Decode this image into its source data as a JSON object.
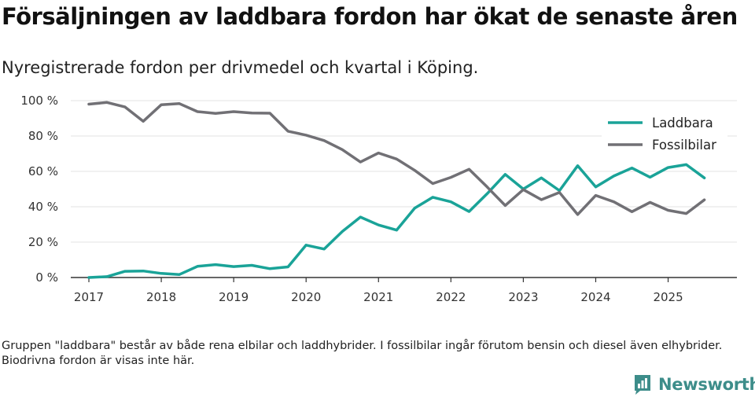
{
  "title": "Försäljningen av laddbara fordon har ökat de senaste åren",
  "subtitle": "Nyregistrerade fordon per drivmedel och kvartal i Köping.",
  "footnote": "Gruppen \"laddbara\" består av både rena elbilar och laddhybrider. I fossilbilar ingår förutom bensin och diesel även elhybrider. Biodrivna fordon är visas inte här.",
  "brand": {
    "name": "Newsworthy",
    "icon": "newsworthy-logo-icon"
  },
  "colors": {
    "laddbara": "#1aa398",
    "fossilbilar": "#717075",
    "grid": "#e3e3e3",
    "axis": "#333333"
  },
  "chart_data": {
    "type": "line",
    "title": "Försäljningen av laddbara fordon har ökat de senaste åren",
    "xlabel": "",
    "ylabel": "",
    "ylim": [
      0,
      100
    ],
    "xlim": [
      2016.75,
      2025.95
    ],
    "y_ticks": [
      0,
      20,
      40,
      60,
      80,
      100
    ],
    "y_tick_labels": [
      "0 %",
      "20 %",
      "40 %",
      "60 %",
      "80 %",
      "100 %"
    ],
    "x_ticks": [
      2017,
      2018,
      2019,
      2020,
      2021,
      2022,
      2023,
      2024,
      2025
    ],
    "x_tick_labels": [
      "2017",
      "2018",
      "2019",
      "2020",
      "2021",
      "2022",
      "2023",
      "2024",
      "2025"
    ],
    "legend_position": "top-right",
    "grid": true,
    "x": [
      2017,
      2017.25,
      2017.5,
      2017.75,
      2018,
      2018.25,
      2018.5,
      2018.75,
      2019,
      2019.25,
      2019.5,
      2019.75,
      2020,
      2020.25,
      2020.5,
      2020.75,
      2021,
      2021.25,
      2021.5,
      2021.75,
      2022,
      2022.25,
      2022.5,
      2022.75,
      2023,
      2023.25,
      2023.5,
      2023.75,
      2024,
      2024.25,
      2024.5,
      2024.75,
      2025,
      2025.25,
      2025.5
    ],
    "series": [
      {
        "name": "Laddbara",
        "key": "laddbara",
        "values": [
          0,
          0.5,
          3.5,
          3.7,
          2.3,
          1.7,
          6.3,
          7.3,
          6.2,
          6.9,
          5.0,
          6.0,
          18.3,
          16.1,
          26.0,
          34.2,
          29.7,
          26.8,
          39.2,
          45.4,
          42.8,
          37.3,
          47.4,
          58.3,
          50.0,
          56.3,
          49.1,
          63.2,
          51.2,
          57.4,
          61.9,
          56.7,
          62.2,
          63.8,
          56.3
        ]
      },
      {
        "name": "Fossilbilar",
        "key": "fossilbilar",
        "values": [
          98.0,
          99.0,
          96.4,
          88.3,
          97.7,
          98.3,
          93.8,
          92.8,
          93.8,
          93.0,
          92.9,
          82.7,
          80.5,
          77.4,
          72.3,
          65.3,
          70.4,
          67.0,
          60.6,
          53.1,
          56.6,
          61.2,
          51.2,
          40.7,
          49.7,
          44.0,
          48.1,
          35.6,
          46.4,
          42.8,
          37.2,
          42.5,
          38.0,
          36.2,
          43.9
        ]
      }
    ]
  }
}
